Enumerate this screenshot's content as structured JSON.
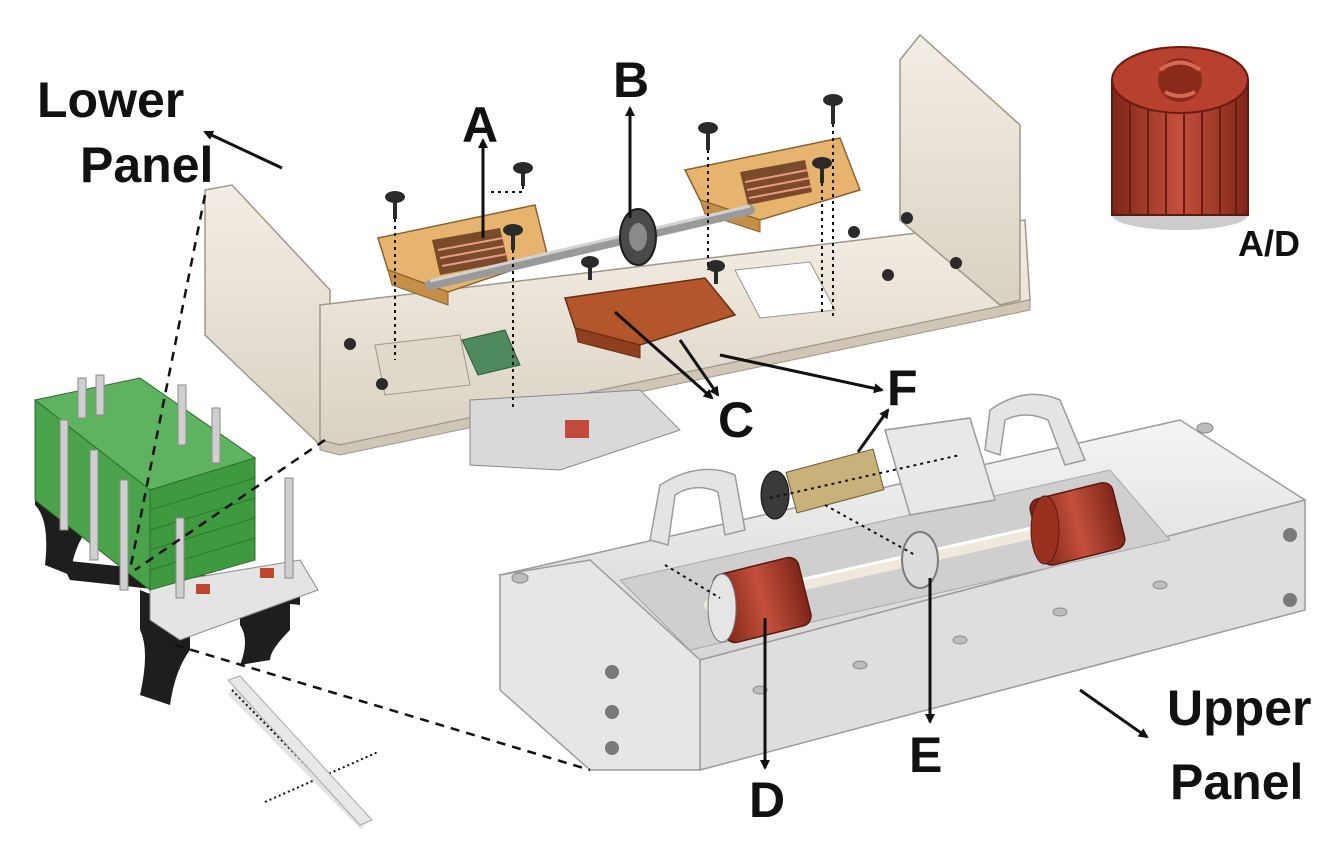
{
  "labels": {
    "lower_panel_line1": "Lower",
    "lower_panel_line2": "Panel",
    "upper_panel_line1": "Upper",
    "upper_panel_line2": "Panel",
    "a": "A",
    "b": "B",
    "c": "C",
    "d": "D",
    "e": "E",
    "f": "F",
    "ad": "A/D"
  },
  "colors": {
    "lower_panel_body": "#e9e2d6",
    "upper_panel_body": "#ebebeb",
    "clamp_tan": "#e6b46e",
    "copper_plate": "#b3562c",
    "roller_red": "#b84432",
    "stack_green": "#3f9a3f",
    "frame_black": "#1e1e1e",
    "arrow": "#111111"
  },
  "icons": {
    "screw": "screw-icon",
    "roller": "roller-icon",
    "gear": "gear-icon"
  }
}
